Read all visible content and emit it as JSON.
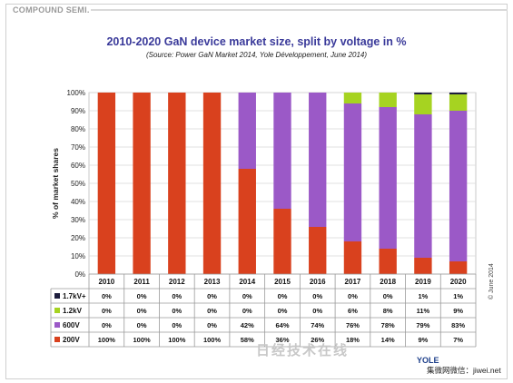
{
  "header": {
    "brand": "COMPOUND SEMI."
  },
  "chart_data": {
    "type": "bar",
    "stacked": true,
    "title": "2010-2020 GaN device market size, split by voltage in %",
    "subtitle": "(Source: Power GaN Market 2014, Yole Développement, June 2014)",
    "ylabel": "% of market shares",
    "ylim": [
      0,
      100
    ],
    "yticks": [
      "0%",
      "10%",
      "20%",
      "30%",
      "40%",
      "50%",
      "60%",
      "70%",
      "80%",
      "90%",
      "100%"
    ],
    "categories": [
      "2010",
      "2011",
      "2012",
      "2013",
      "2014",
      "2015",
      "2016",
      "2017",
      "2018",
      "2019",
      "2020"
    ],
    "series": [
      {
        "name": "200V",
        "color": "#d9411e",
        "values": [
          100,
          100,
          100,
          100,
          58,
          36,
          26,
          18,
          14,
          9,
          7
        ],
        "labels": [
          "100%",
          "100%",
          "100%",
          "100%",
          "58%",
          "36%",
          "26%",
          "18%",
          "14%",
          "9%",
          "7%"
        ]
      },
      {
        "name": "600V",
        "color": "#9b59c7",
        "values": [
          0,
          0,
          0,
          0,
          42,
          64,
          74,
          76,
          78,
          79,
          83
        ],
        "labels": [
          "0%",
          "0%",
          "0%",
          "0%",
          "42%",
          "64%",
          "74%",
          "76%",
          "78%",
          "79%",
          "83%"
        ]
      },
      {
        "name": "1.2kV",
        "color": "#a6d321",
        "values": [
          0,
          0,
          0,
          0,
          0,
          0,
          0,
          6,
          8,
          11,
          9
        ],
        "labels": [
          "0%",
          "0%",
          "0%",
          "0%",
          "0%",
          "0%",
          "0%",
          "6%",
          "8%",
          "11%",
          "9%"
        ]
      },
      {
        "name": "1.7kV+",
        "color": "#1c1c3c",
        "values": [
          0,
          0,
          0,
          0,
          0,
          0,
          0,
          0,
          0,
          1,
          1
        ],
        "labels": [
          "0%",
          "0%",
          "0%",
          "0%",
          "0%",
          "0%",
          "0%",
          "0%",
          "0%",
          "1%",
          "1%"
        ]
      }
    ],
    "table_row_order": [
      "1.7kV+",
      "1.2kV",
      "600V",
      "200V"
    ],
    "grid": true
  },
  "footer": {
    "copyright": "© June 2014",
    "logo": "YOLE",
    "source_text": "集微网微信：jiwei.net",
    "watermark": "日经技术在线"
  }
}
